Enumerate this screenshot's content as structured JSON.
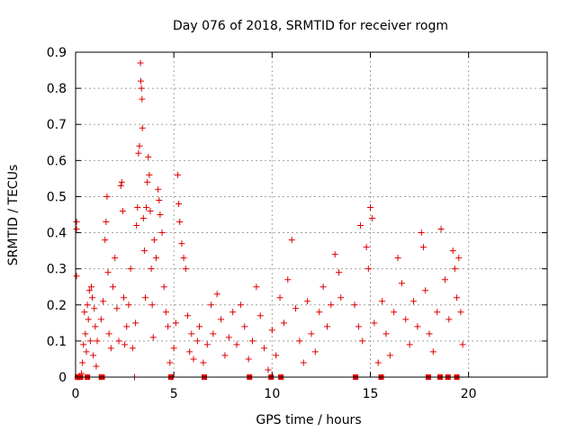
{
  "chart_data": {
    "type": "scatter",
    "title": "Day 076 of 2018, SRMTID for receiver rogm",
    "xlabel": "GPS time / hours",
    "ylabel": "SRMTID / TECUs",
    "xlim": [
      0,
      24
    ],
    "ylim": [
      0,
      0.9
    ],
    "x_ticks": [
      "0",
      "5",
      "10",
      "15",
      "20"
    ],
    "y_ticks": [
      "0",
      "0.1",
      "0.2",
      "0.3",
      "0.4",
      "0.5",
      "0.6",
      "0.7",
      "0.8",
      "0.9"
    ],
    "grid": true,
    "marker": "plus",
    "color": "#e00000",
    "series": [
      {
        "points": [
          [
            0.05,
            0.43
          ],
          [
            0.05,
            0.41
          ],
          [
            0.05,
            0.28
          ],
          [
            0.1,
            0.0
          ],
          [
            0.2,
            0.0
          ],
          [
            0.3,
            0.01
          ],
          [
            0.35,
            0.04
          ],
          [
            0.4,
            0.09
          ],
          [
            0.45,
            0.18
          ],
          [
            0.5,
            0.12
          ],
          [
            0.55,
            0.07
          ],
          [
            0.6,
            0.2
          ],
          [
            0.65,
            0.16
          ],
          [
            0.7,
            0.24
          ],
          [
            0.75,
            0.1
          ],
          [
            0.8,
            0.25
          ],
          [
            0.85,
            0.22
          ],
          [
            0.9,
            0.06
          ],
          [
            0.95,
            0.19
          ],
          [
            1.0,
            0.14
          ],
          [
            1.05,
            0.03
          ],
          [
            1.1,
            0.1
          ],
          [
            1.2,
            0.0
          ],
          [
            1.3,
            0.16
          ],
          [
            1.4,
            0.21
          ],
          [
            1.5,
            0.38
          ],
          [
            1.55,
            0.43
          ],
          [
            1.6,
            0.5
          ],
          [
            1.65,
            0.29
          ],
          [
            1.7,
            0.12
          ],
          [
            1.8,
            0.08
          ],
          [
            1.9,
            0.25
          ],
          [
            2.0,
            0.33
          ],
          [
            2.1,
            0.19
          ],
          [
            2.2,
            0.1
          ],
          [
            2.3,
            0.53
          ],
          [
            2.35,
            0.54
          ],
          [
            2.4,
            0.46
          ],
          [
            2.45,
            0.22
          ],
          [
            2.5,
            0.09
          ],
          [
            2.6,
            0.14
          ],
          [
            2.7,
            0.2
          ],
          [
            2.8,
            0.3
          ],
          [
            2.9,
            0.08
          ],
          [
            3.0,
            0.0
          ],
          [
            3.05,
            0.15
          ],
          [
            3.1,
            0.42
          ],
          [
            3.15,
            0.47
          ],
          [
            3.2,
            0.62
          ],
          [
            3.25,
            0.64
          ],
          [
            3.3,
            0.87
          ],
          [
            3.32,
            0.82
          ],
          [
            3.35,
            0.8
          ],
          [
            3.38,
            0.77
          ],
          [
            3.4,
            0.69
          ],
          [
            3.45,
            0.44
          ],
          [
            3.5,
            0.35
          ],
          [
            3.55,
            0.22
          ],
          [
            3.6,
            0.47
          ],
          [
            3.65,
            0.54
          ],
          [
            3.7,
            0.61
          ],
          [
            3.75,
            0.56
          ],
          [
            3.8,
            0.46
          ],
          [
            3.85,
            0.3
          ],
          [
            3.9,
            0.2
          ],
          [
            3.95,
            0.11
          ],
          [
            4.0,
            0.38
          ],
          [
            4.1,
            0.33
          ],
          [
            4.2,
            0.52
          ],
          [
            4.25,
            0.49
          ],
          [
            4.3,
            0.45
          ],
          [
            4.4,
            0.4
          ],
          [
            4.5,
            0.25
          ],
          [
            4.6,
            0.18
          ],
          [
            4.7,
            0.14
          ],
          [
            4.8,
            0.04
          ],
          [
            4.9,
            0.0
          ],
          [
            5.0,
            0.08
          ],
          [
            5.1,
            0.15
          ],
          [
            5.2,
            0.56
          ],
          [
            5.25,
            0.48
          ],
          [
            5.3,
            0.43
          ],
          [
            5.4,
            0.37
          ],
          [
            5.5,
            0.33
          ],
          [
            5.6,
            0.3
          ],
          [
            5.7,
            0.17
          ],
          [
            5.8,
            0.07
          ],
          [
            5.9,
            0.12
          ],
          [
            6.0,
            0.05
          ],
          [
            6.2,
            0.1
          ],
          [
            6.3,
            0.14
          ],
          [
            6.5,
            0.04
          ],
          [
            6.7,
            0.09
          ],
          [
            6.9,
            0.2
          ],
          [
            7.0,
            0.12
          ],
          [
            7.2,
            0.23
          ],
          [
            7.4,
            0.16
          ],
          [
            7.6,
            0.06
          ],
          [
            7.8,
            0.11
          ],
          [
            8.0,
            0.18
          ],
          [
            8.2,
            0.09
          ],
          [
            8.4,
            0.2
          ],
          [
            8.6,
            0.14
          ],
          [
            8.8,
            0.05
          ],
          [
            9.0,
            0.1
          ],
          [
            9.2,
            0.25
          ],
          [
            9.4,
            0.17
          ],
          [
            9.6,
            0.08
          ],
          [
            9.8,
            0.02
          ],
          [
            10.0,
            0.13
          ],
          [
            10.2,
            0.06
          ],
          [
            10.4,
            0.22
          ],
          [
            10.6,
            0.15
          ],
          [
            10.8,
            0.27
          ],
          [
            11.0,
            0.38
          ],
          [
            11.2,
            0.19
          ],
          [
            11.4,
            0.1
          ],
          [
            11.6,
            0.04
          ],
          [
            11.8,
            0.21
          ],
          [
            12.0,
            0.12
          ],
          [
            12.2,
            0.07
          ],
          [
            12.4,
            0.18
          ],
          [
            12.6,
            0.25
          ],
          [
            12.8,
            0.14
          ],
          [
            13.0,
            0.2
          ],
          [
            13.2,
            0.34
          ],
          [
            13.4,
            0.29
          ],
          [
            13.5,
            0.22
          ],
          [
            14.2,
            0.2
          ],
          [
            14.4,
            0.14
          ],
          [
            14.5,
            0.42
          ],
          [
            14.6,
            0.1
          ],
          [
            14.8,
            0.36
          ],
          [
            14.9,
            0.3
          ],
          [
            15.0,
            0.47
          ],
          [
            15.1,
            0.44
          ],
          [
            15.2,
            0.15
          ],
          [
            15.4,
            0.04
          ],
          [
            15.6,
            0.21
          ],
          [
            15.8,
            0.12
          ],
          [
            16.0,
            0.06
          ],
          [
            16.2,
            0.18
          ],
          [
            16.4,
            0.33
          ],
          [
            16.6,
            0.26
          ],
          [
            16.8,
            0.16
          ],
          [
            17.0,
            0.09
          ],
          [
            17.2,
            0.21
          ],
          [
            17.4,
            0.14
          ],
          [
            17.6,
            0.4
          ],
          [
            17.7,
            0.36
          ],
          [
            17.8,
            0.24
          ],
          [
            18.0,
            0.12
          ],
          [
            18.2,
            0.07
          ],
          [
            18.4,
            0.18
          ],
          [
            18.6,
            0.41
          ],
          [
            18.8,
            0.27
          ],
          [
            19.0,
            0.16
          ],
          [
            19.2,
            0.35
          ],
          [
            19.3,
            0.3
          ],
          [
            19.4,
            0.22
          ],
          [
            19.5,
            0.33
          ],
          [
            19.6,
            0.18
          ],
          [
            19.7,
            0.09
          ]
        ]
      }
    ],
    "zero_markers": [
      0.1,
      0.25,
      0.6,
      1.35,
      4.85,
      6.55,
      8.85,
      9.95,
      10.45,
      14.25,
      15.55,
      17.95,
      18.55,
      18.95,
      19.4
    ]
  }
}
